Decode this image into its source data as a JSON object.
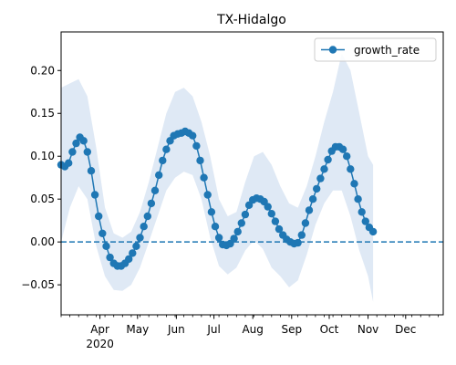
{
  "chart_data": {
    "type": "line",
    "title": "TX-Hidalgo",
    "xlabel": "",
    "ylabel": "",
    "x_start": "2020-03-01",
    "x_end": "2020-12-31",
    "xlim": [
      "2020-03-01",
      "2020-12-31"
    ],
    "ylim": [
      -0.085,
      0.245
    ],
    "y_ticks": [
      -0.05,
      0.0,
      0.05,
      0.1,
      0.15,
      0.2
    ],
    "y_tick_labels": [
      "−0.05",
      "0.00",
      "0.05",
      "0.10",
      "0.15",
      "0.20"
    ],
    "x_ticks": [
      {
        "date": "2020-04-01",
        "label": "Apr",
        "sublabel": "2020"
      },
      {
        "date": "2020-05-01",
        "label": "May"
      },
      {
        "date": "2020-06-01",
        "label": "Jun"
      },
      {
        "date": "2020-07-01",
        "label": "Jul"
      },
      {
        "date": "2020-08-01",
        "label": "Aug"
      },
      {
        "date": "2020-09-01",
        "label": "Sep"
      },
      {
        "date": "2020-10-01",
        "label": "Oct"
      },
      {
        "date": "2020-11-01",
        "label": "Nov"
      },
      {
        "date": "2020-12-01",
        "label": "Dec"
      }
    ],
    "minor_ticks": "weekly",
    "legend": {
      "position": "top-right",
      "entries": [
        "growth_rate"
      ]
    },
    "grid": false,
    "colors": {
      "line": "#1f77b4",
      "band": "#dfe9f5",
      "zero_line": "#1f77b4"
    },
    "reference_line": {
      "y": 0.0,
      "style": "dashed"
    },
    "series": [
      {
        "name": "growth_rate",
        "points": [
          [
            "2020-03-01",
            0.09
          ],
          [
            "2020-03-04",
            0.088
          ],
          [
            "2020-03-07",
            0.092
          ],
          [
            "2020-03-10",
            0.105
          ],
          [
            "2020-03-13",
            0.115
          ],
          [
            "2020-03-16",
            0.122
          ],
          [
            "2020-03-19",
            0.118
          ],
          [
            "2020-03-22",
            0.105
          ],
          [
            "2020-03-25",
            0.083
          ],
          [
            "2020-03-28",
            0.055
          ],
          [
            "2020-03-31",
            0.03
          ],
          [
            "2020-04-03",
            0.01
          ],
          [
            "2020-04-06",
            -0.005
          ],
          [
            "2020-04-09",
            -0.018
          ],
          [
            "2020-04-12",
            -0.025
          ],
          [
            "2020-04-15",
            -0.028
          ],
          [
            "2020-04-18",
            -0.028
          ],
          [
            "2020-04-21",
            -0.025
          ],
          [
            "2020-04-24",
            -0.02
          ],
          [
            "2020-04-27",
            -0.013
          ],
          [
            "2020-04-30",
            -0.005
          ],
          [
            "2020-05-03",
            0.005
          ],
          [
            "2020-05-06",
            0.018
          ],
          [
            "2020-05-09",
            0.03
          ],
          [
            "2020-05-12",
            0.045
          ],
          [
            "2020-05-15",
            0.06
          ],
          [
            "2020-05-18",
            0.078
          ],
          [
            "2020-05-21",
            0.095
          ],
          [
            "2020-05-24",
            0.108
          ],
          [
            "2020-05-27",
            0.118
          ],
          [
            "2020-05-30",
            0.124
          ],
          [
            "2020-06-02",
            0.126
          ],
          [
            "2020-06-05",
            0.127
          ],
          [
            "2020-06-08",
            0.129
          ],
          [
            "2020-06-11",
            0.127
          ],
          [
            "2020-06-14",
            0.124
          ],
          [
            "2020-06-17",
            0.112
          ],
          [
            "2020-06-20",
            0.095
          ],
          [
            "2020-06-23",
            0.075
          ],
          [
            "2020-06-26",
            0.055
          ],
          [
            "2020-06-29",
            0.035
          ],
          [
            "2020-07-02",
            0.018
          ],
          [
            "2020-07-05",
            0.005
          ],
          [
            "2020-07-08",
            -0.003
          ],
          [
            "2020-07-11",
            -0.004
          ],
          [
            "2020-07-14",
            -0.002
          ],
          [
            "2020-07-17",
            0.004
          ],
          [
            "2020-07-20",
            0.012
          ],
          [
            "2020-07-23",
            0.022
          ],
          [
            "2020-07-26",
            0.032
          ],
          [
            "2020-07-29",
            0.043
          ],
          [
            "2020-08-01",
            0.049
          ],
          [
            "2020-08-04",
            0.051
          ],
          [
            "2020-08-07",
            0.05
          ],
          [
            "2020-08-10",
            0.047
          ],
          [
            "2020-08-13",
            0.041
          ],
          [
            "2020-08-16",
            0.033
          ],
          [
            "2020-08-19",
            0.024
          ],
          [
            "2020-08-22",
            0.015
          ],
          [
            "2020-08-25",
            0.008
          ],
          [
            "2020-08-28",
            0.003
          ],
          [
            "2020-08-31",
            0.0
          ],
          [
            "2020-09-03",
            -0.002
          ],
          [
            "2020-09-06",
            -0.001
          ],
          [
            "2020-09-09",
            0.008
          ],
          [
            "2020-09-12",
            0.022
          ],
          [
            "2020-09-15",
            0.037
          ],
          [
            "2020-09-18",
            0.05
          ],
          [
            "2020-09-21",
            0.062
          ],
          [
            "2020-09-24",
            0.074
          ],
          [
            "2020-09-27",
            0.085
          ],
          [
            "2020-09-30",
            0.096
          ],
          [
            "2020-10-03",
            0.106
          ],
          [
            "2020-10-06",
            0.111
          ],
          [
            "2020-10-09",
            0.111
          ],
          [
            "2020-10-12",
            0.108
          ],
          [
            "2020-10-15",
            0.1
          ],
          [
            "2020-10-18",
            0.085
          ],
          [
            "2020-10-21",
            0.068
          ],
          [
            "2020-10-24",
            0.05
          ],
          [
            "2020-10-27",
            0.035
          ],
          [
            "2020-10-30",
            0.024
          ],
          [
            "2020-11-02",
            0.017
          ],
          [
            "2020-11-05",
            0.012
          ]
        ]
      }
    ],
    "confidence_band": {
      "lower": [
        [
          "2020-03-01",
          0.0
        ],
        [
          "2020-03-08",
          0.04
        ],
        [
          "2020-03-15",
          0.065
        ],
        [
          "2020-03-22",
          0.05
        ],
        [
          "2020-03-29",
          -0.005
        ],
        [
          "2020-04-05",
          -0.04
        ],
        [
          "2020-04-12",
          -0.056
        ],
        [
          "2020-04-19",
          -0.057
        ],
        [
          "2020-04-26",
          -0.05
        ],
        [
          "2020-05-03",
          -0.03
        ],
        [
          "2020-05-10",
          0.0
        ],
        [
          "2020-05-17",
          0.03
        ],
        [
          "2020-05-24",
          0.06
        ],
        [
          "2020-05-31",
          0.075
        ],
        [
          "2020-06-07",
          0.082
        ],
        [
          "2020-06-14",
          0.078
        ],
        [
          "2020-06-21",
          0.05
        ],
        [
          "2020-06-28",
          0.005
        ],
        [
          "2020-07-05",
          -0.028
        ],
        [
          "2020-07-12",
          -0.038
        ],
        [
          "2020-07-19",
          -0.03
        ],
        [
          "2020-07-26",
          -0.01
        ],
        [
          "2020-08-02",
          0.002
        ],
        [
          "2020-08-09",
          -0.008
        ],
        [
          "2020-08-16",
          -0.03
        ],
        [
          "2020-08-23",
          -0.04
        ],
        [
          "2020-08-30",
          -0.053
        ],
        [
          "2020-09-06",
          -0.045
        ],
        [
          "2020-09-13",
          -0.015
        ],
        [
          "2020-09-20",
          0.02
        ],
        [
          "2020-09-27",
          0.045
        ],
        [
          "2020-10-04",
          0.06
        ],
        [
          "2020-10-11",
          0.06
        ],
        [
          "2020-10-18",
          0.03
        ],
        [
          "2020-10-25",
          -0.01
        ],
        [
          "2020-11-01",
          -0.04
        ],
        [
          "2020-11-05",
          -0.07
        ]
      ],
      "upper": [
        [
          "2020-03-01",
          0.18
        ],
        [
          "2020-03-08",
          0.185
        ],
        [
          "2020-03-15",
          0.19
        ],
        [
          "2020-03-22",
          0.17
        ],
        [
          "2020-03-29",
          0.11
        ],
        [
          "2020-04-05",
          0.04
        ],
        [
          "2020-04-12",
          0.01
        ],
        [
          "2020-04-19",
          0.005
        ],
        [
          "2020-04-26",
          0.012
        ],
        [
          "2020-05-03",
          0.035
        ],
        [
          "2020-05-10",
          0.07
        ],
        [
          "2020-05-17",
          0.11
        ],
        [
          "2020-05-24",
          0.15
        ],
        [
          "2020-05-31",
          0.175
        ],
        [
          "2020-06-07",
          0.18
        ],
        [
          "2020-06-14",
          0.17
        ],
        [
          "2020-06-21",
          0.14
        ],
        [
          "2020-06-28",
          0.1
        ],
        [
          "2020-07-05",
          0.05
        ],
        [
          "2020-07-12",
          0.03
        ],
        [
          "2020-07-19",
          0.035
        ],
        [
          "2020-07-26",
          0.07
        ],
        [
          "2020-08-02",
          0.1
        ],
        [
          "2020-08-09",
          0.105
        ],
        [
          "2020-08-16",
          0.09
        ],
        [
          "2020-08-23",
          0.065
        ],
        [
          "2020-08-30",
          0.045
        ],
        [
          "2020-09-06",
          0.04
        ],
        [
          "2020-09-13",
          0.065
        ],
        [
          "2020-09-20",
          0.1
        ],
        [
          "2020-09-27",
          0.14
        ],
        [
          "2020-10-04",
          0.175
        ],
        [
          "2020-10-11",
          0.22
        ],
        [
          "2020-10-18",
          0.2
        ],
        [
          "2020-10-25",
          0.15
        ],
        [
          "2020-11-01",
          0.1
        ],
        [
          "2020-11-05",
          0.09
        ]
      ]
    }
  }
}
